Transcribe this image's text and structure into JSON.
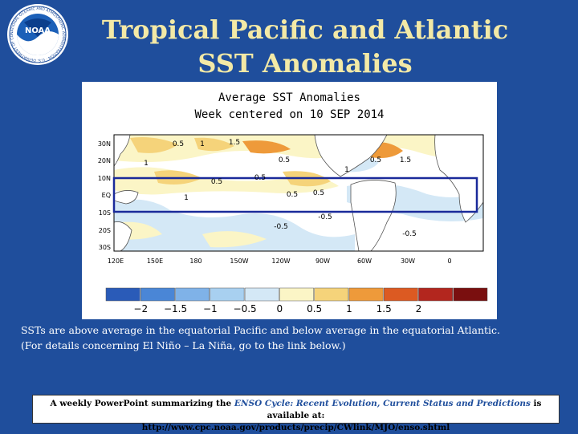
{
  "slide": {
    "title_line1": "Tropical Pacific and Atlantic",
    "title_line2": "SST Anomalies"
  },
  "logo": {
    "text": "NOAA",
    "ring_text": "NATIONAL OCEANIC AND ATMOSPHERIC ADMINISTRATION · U.S. DEPARTMENT OF COMMERCE"
  },
  "map": {
    "title_line1": "Average SST Anomalies",
    "title_line2": "Week centered on 10 SEP 2014",
    "lat_labels": [
      "30N",
      "20N",
      "10N",
      "EQ",
      "10S",
      "20S",
      "30S"
    ],
    "lon_labels": [
      "120E",
      "150E",
      "180",
      "150W",
      "120W",
      "90W",
      "60W",
      "30W",
      "0"
    ],
    "contour_labels": [
      {
        "text": "0.5"
      },
      {
        "text": "1"
      },
      {
        "text": "1.5"
      },
      {
        "text": "0.5"
      },
      {
        "text": "1"
      },
      {
        "text": "1.5"
      },
      {
        "text": "0.5"
      },
      {
        "text": "1"
      },
      {
        "text": "0.5"
      },
      {
        "text": "0.5"
      },
      {
        "text": "1"
      },
      {
        "text": "0.5"
      },
      {
        "text": "0.5"
      },
      {
        "text": "-0.5"
      },
      {
        "text": "-0.5"
      },
      {
        "text": "-0.5"
      }
    ],
    "colorbar": {
      "ticks": [
        "−2",
        "−1.5",
        "−1",
        "−0.5",
        "0",
        "0.5",
        "1",
        "1.5",
        "2"
      ],
      "colors": [
        "#2a5bb8",
        "#4a86d6",
        "#7fb2e8",
        "#a8d0f0",
        "#d4e8f6",
        "#fbf5c6",
        "#f5d37a",
        "#ee9a3a",
        "#dc5a22",
        "#b3261e",
        "#7a0f0f"
      ]
    }
  },
  "caption": {
    "line1": "SSTs are above average in the equatorial Pacific and below average in the equatorial Atlantic.",
    "line2": "(For details concerning El Niño – La Niña, go to the link below.)"
  },
  "footer": {
    "prefix": "A weekly PowerPoint summarizing the ",
    "emphasis": "ENSO Cycle: Recent Evolution, Current Status and Predictions",
    "suffix": " is available at:",
    "url": "http://www.cpc.noaa.gov/products/precip/CWlink/MJO/enso.shtml"
  }
}
